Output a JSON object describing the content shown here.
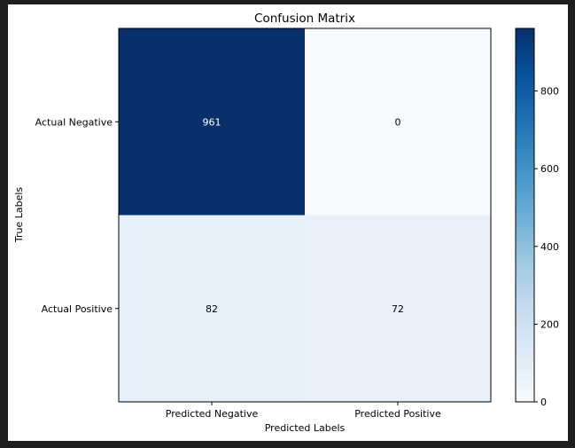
{
  "chart_data": {
    "type": "heatmap",
    "title": "Confusion Matrix",
    "xlabel": "Predicted Labels",
    "ylabel": "True Labels",
    "x_categories": [
      "Predicted Negative",
      "Predicted Positive"
    ],
    "y_categories": [
      "Actual Negative",
      "Actual Positive"
    ],
    "values": [
      [
        961,
        0
      ],
      [
        82,
        72
      ]
    ],
    "colormap": "Blues",
    "colorbar": {
      "range": [
        0,
        961
      ],
      "ticks": [
        0,
        200,
        400,
        600,
        800
      ]
    }
  }
}
